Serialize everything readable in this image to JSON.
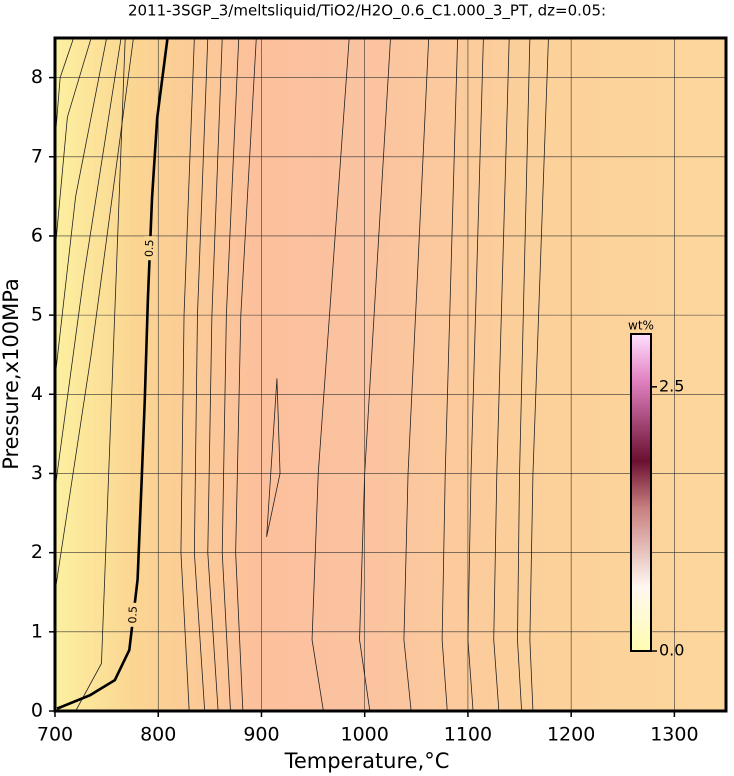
{
  "chart_data": {
    "type": "contour",
    "title": "2011-3SGP_3/meltsliquid/TiO2/H2O_0.6_C1.000_3_PT, dz=0.05:",
    "x_label": "Temperature,°C",
    "y_label": "Pressure,x100MPa",
    "xlim": [
      700,
      1350
    ],
    "xticks": [
      700,
      800,
      900,
      1000,
      1100,
      1200,
      1300
    ],
    "ylim": [
      0,
      8.5
    ],
    "yticks": [
      0,
      1,
      2,
      3,
      4,
      5,
      6,
      7,
      8
    ],
    "grid": true,
    "main_contour": {
      "level": 0.5,
      "color": "#000000",
      "x": [
        702,
        734,
        758,
        772,
        780,
        784,
        787,
        790,
        794,
        799,
        809
      ],
      "y": [
        0.03,
        0.2,
        0.39,
        0.77,
        1.66,
        2.93,
        3.94,
        5.21,
        6.48,
        7.49,
        8.5
      ]
    },
    "contours": [
      {
        "x": [
          700,
          705,
          718
        ],
        "y": [
          7.2,
          8,
          8.5
        ]
      },
      {
        "x": [
          700,
          712,
          735
        ],
        "y": [
          5.8,
          7.5,
          8.5
        ]
      },
      {
        "x": [
          700,
          720,
          750
        ],
        "y": [
          4.2,
          6.5,
          8.5
        ]
      },
      {
        "x": [
          700,
          728,
          764
        ],
        "y": [
          2.8,
          5.5,
          8.5
        ]
      },
      {
        "x": [
          700,
          735,
          776
        ],
        "y": [
          1.5,
          4.5,
          8.5
        ]
      },
      {
        "x": [
          720,
          745,
          752,
          768
        ],
        "y": [
          0,
          0.6,
          3,
          8.5
        ]
      },
      {
        "x": [
          830,
          822,
          825,
          835
        ],
        "y": [
          0,
          2,
          5,
          8.5
        ]
      },
      {
        "x": [
          845,
          835,
          838,
          848
        ],
        "y": [
          0,
          2,
          5,
          8.5
        ]
      },
      {
        "x": [
          858,
          848,
          852,
          862
        ],
        "y": [
          0,
          2,
          5,
          8.5
        ]
      },
      {
        "x": [
          870,
          862,
          866,
          878
        ],
        "y": [
          0,
          2,
          5,
          8.5
        ]
      },
      {
        "x": [
          882,
          875,
          880,
          895
        ],
        "y": [
          0,
          2,
          5,
          8.5
        ]
      },
      {
        "x": [
          905,
          918,
          915,
          905
        ],
        "y": [
          2.2,
          3,
          4.2,
          2.2
        ]
      },
      {
        "x": [
          960,
          949,
          955,
          985
        ],
        "y": [
          0,
          0.9,
          3,
          8.5
        ]
      },
      {
        "x": [
          1005,
          995,
          1000,
          1025
        ],
        "y": [
          0,
          0.9,
          3,
          8.5
        ]
      },
      {
        "x": [
          1045,
          1038,
          1042,
          1062
        ],
        "y": [
          0,
          0.9,
          3,
          8.5
        ]
      },
      {
        "x": [
          1080,
          1075,
          1078,
          1090
        ],
        "y": [
          0,
          0.9,
          3,
          8.5
        ]
      },
      {
        "x": [
          1105,
          1100,
          1103,
          1115
        ],
        "y": [
          0,
          0.9,
          3,
          8.5
        ]
      },
      {
        "x": [
          1130,
          1125,
          1128,
          1140
        ],
        "y": [
          0,
          0.9,
          3,
          8.5
        ]
      },
      {
        "x": [
          1152,
          1148,
          1150,
          1160
        ],
        "y": [
          0,
          0.9,
          3,
          8.5
        ]
      },
      {
        "x": [
          1163,
          1160,
          1163,
          1178
        ],
        "y": [
          0,
          0.9,
          3,
          8.5
        ]
      }
    ],
    "colorbar": {
      "label": "wt%",
      "lim": [
        0,
        3
      ],
      "ticks": [
        {
          "value": 0,
          "label": "0.0"
        },
        {
          "value": 2.5,
          "label": "2.5"
        }
      ]
    }
  }
}
